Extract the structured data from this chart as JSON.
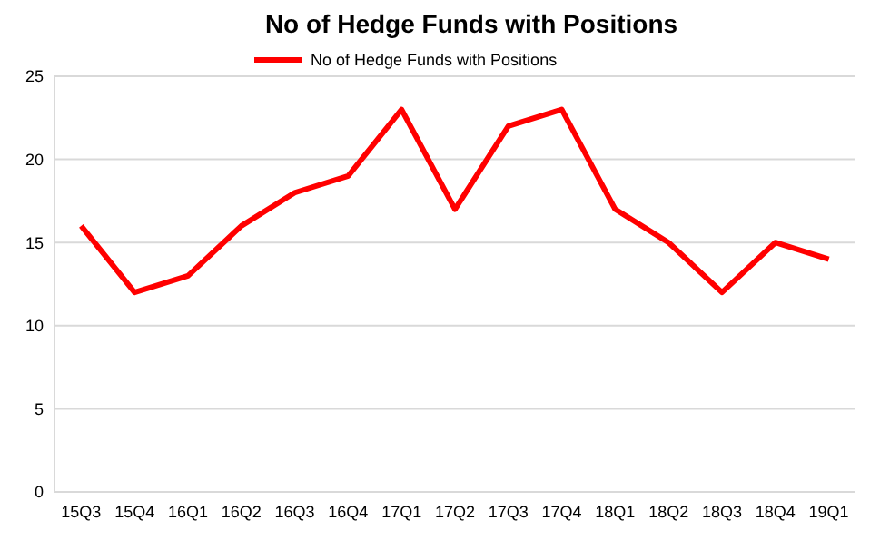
{
  "chart_data": {
    "type": "line",
    "title": "No of Hedge Funds with Positions",
    "categories": [
      "15Q3",
      "15Q4",
      "16Q1",
      "16Q2",
      "16Q3",
      "16Q4",
      "17Q1",
      "17Q2",
      "17Q3",
      "17Q4",
      "18Q1",
      "18Q2",
      "18Q3",
      "18Q4",
      "19Q1"
    ],
    "series": [
      {
        "name": "No of Hedge Funds with Positions",
        "color": "#ff0000",
        "values": [
          16,
          12,
          13,
          16,
          18,
          19,
          23,
          17,
          22,
          23,
          17,
          15,
          12,
          15,
          14
        ]
      }
    ],
    "ylim": [
      0,
      25
    ],
    "yticks": [
      0,
      5,
      10,
      15,
      20,
      25
    ],
    "grid": "y",
    "legend": "top",
    "line_style": "solid",
    "marker": "none"
  }
}
